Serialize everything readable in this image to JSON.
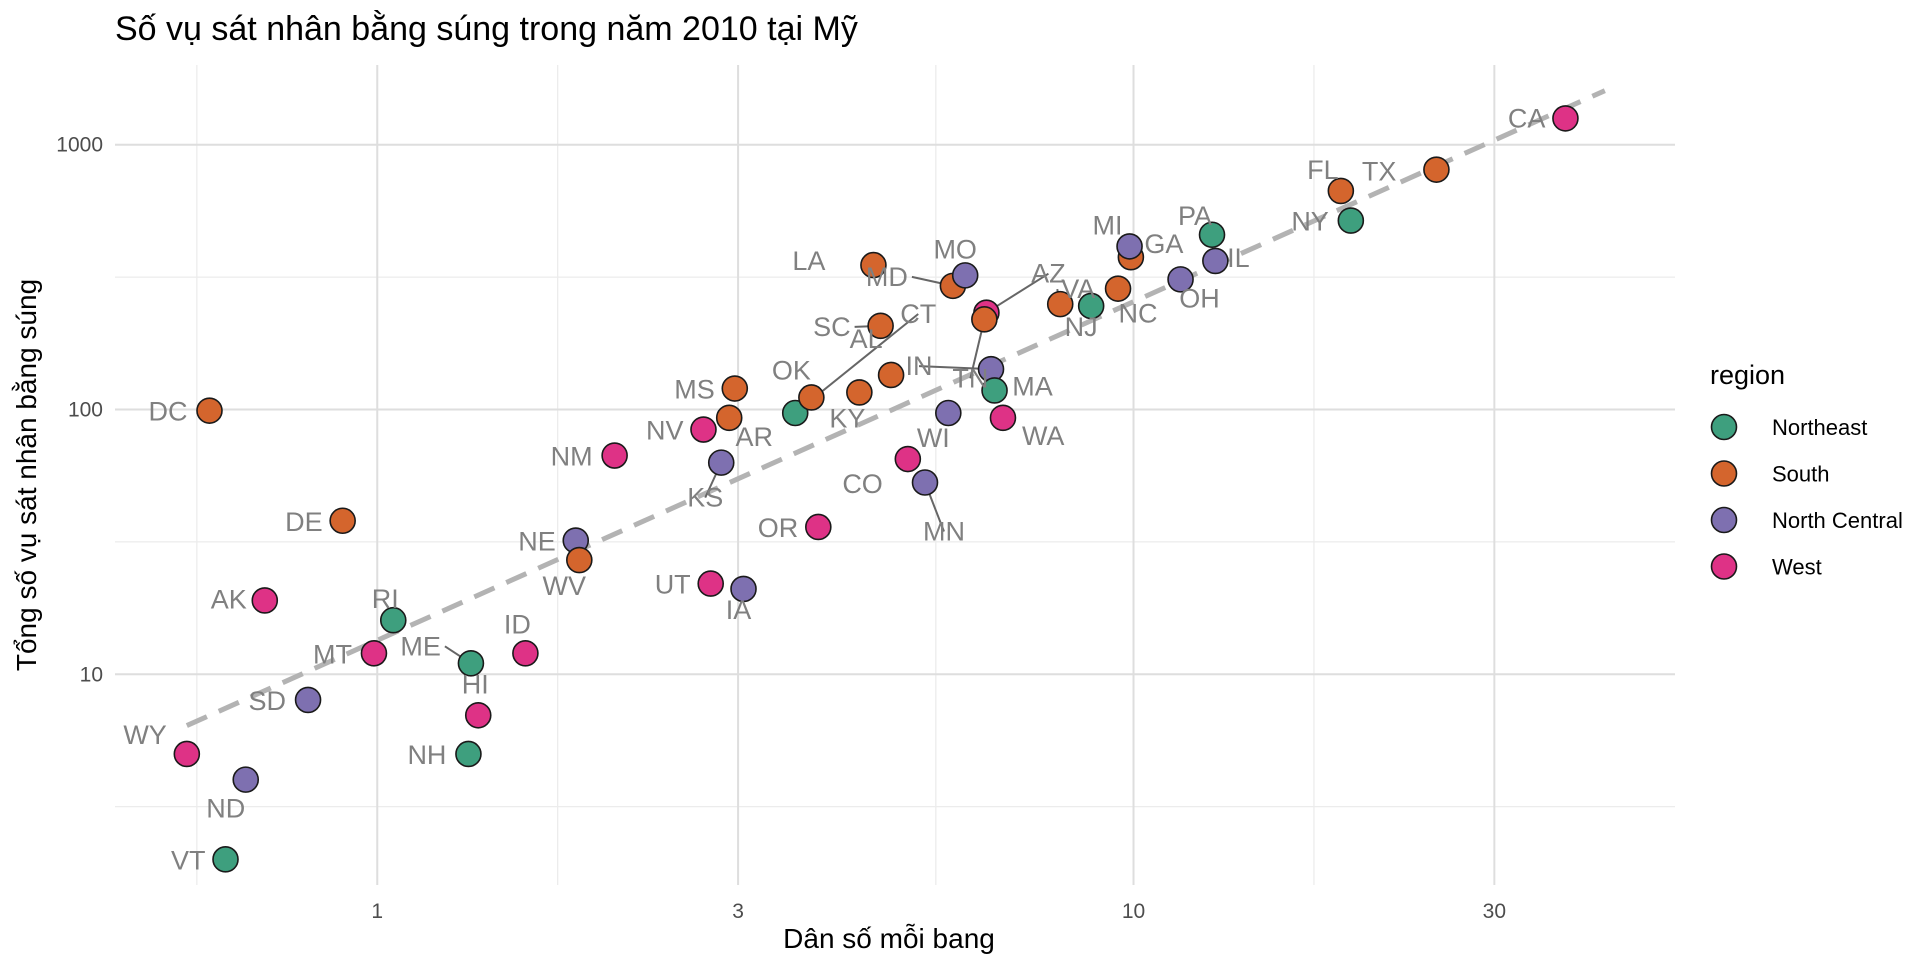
{
  "chart_data": {
    "type": "scatter",
    "title": "Số vụ sát nhân bằng súng trong năm 2010 tại Mỹ",
    "xlabel": "Dân số mỗi bang",
    "ylabel": "Tổng số vụ sát nhân bằng súng",
    "x_scale": "log10",
    "y_scale": "log10",
    "xlim": [
      0.45,
      52
    ],
    "ylim": [
      1.6,
      2000
    ],
    "x_ticks": [
      1,
      3,
      10,
      30
    ],
    "y_ticks": [
      10,
      100,
      1000
    ],
    "grid": true,
    "legend": {
      "title": "region",
      "position": "right",
      "entries": [
        {
          "name": "Northeast",
          "color": "#3E9F7E"
        },
        {
          "name": "South",
          "color": "#D4652D"
        },
        {
          "name": "North Central",
          "color": "#7E70B0"
        },
        {
          "name": "West",
          "color": "#DE3286"
        }
      ]
    },
    "trend_line": {
      "style": "dashed",
      "color": "#b3b3b3",
      "x_range": [
        0.56,
        42
      ],
      "y_range": [
        6.4,
        1600
      ]
    },
    "points": [
      {
        "abb": "AL",
        "x": 4.78,
        "y": 135,
        "region": "South"
      },
      {
        "abb": "AK",
        "x": 0.71,
        "y": 19,
        "region": "West"
      },
      {
        "abb": "AZ",
        "x": 6.39,
        "y": 232,
        "region": "West"
      },
      {
        "abb": "AR",
        "x": 2.92,
        "y": 93,
        "region": "South"
      },
      {
        "abb": "CA",
        "x": 37.25,
        "y": 1257,
        "region": "West"
      },
      {
        "abb": "CO",
        "x": 5.03,
        "y": 65,
        "region": "West"
      },
      {
        "abb": "CT",
        "x": 3.57,
        "y": 97,
        "region": "Northeast"
      },
      {
        "abb": "DE",
        "x": 0.9,
        "y": 38,
        "region": "South"
      },
      {
        "abb": "DC",
        "x": 0.6,
        "y": 99,
        "region": "South"
      },
      {
        "abb": "FL",
        "x": 18.8,
        "y": 669,
        "region": "South"
      },
      {
        "abb": "GA",
        "x": 9.92,
        "y": 376,
        "region": "South"
      },
      {
        "abb": "HI",
        "x": 1.36,
        "y": 7,
        "region": "West"
      },
      {
        "abb": "ID",
        "x": 1.57,
        "y": 12,
        "region": "West"
      },
      {
        "abb": "IL",
        "x": 12.83,
        "y": 364,
        "region": "North Central"
      },
      {
        "abb": "IN",
        "x": 6.48,
        "y": 142,
        "region": "North Central"
      },
      {
        "abb": "IA",
        "x": 3.05,
        "y": 21,
        "region": "North Central"
      },
      {
        "abb": "KS",
        "x": 2.85,
        "y": 63,
        "region": "North Central"
      },
      {
        "abb": "KY",
        "x": 4.34,
        "y": 116,
        "region": "South"
      },
      {
        "abb": "LA",
        "x": 4.53,
        "y": 351,
        "region": "South"
      },
      {
        "abb": "ME",
        "x": 1.33,
        "y": 11,
        "region": "Northeast"
      },
      {
        "abb": "MD",
        "x": 5.77,
        "y": 293,
        "region": "South"
      },
      {
        "abb": "MA",
        "x": 6.55,
        "y": 118,
        "region": "Northeast"
      },
      {
        "abb": "MI",
        "x": 9.88,
        "y": 413,
        "region": "North Central"
      },
      {
        "abb": "MN",
        "x": 5.3,
        "y": 53,
        "region": "North Central"
      },
      {
        "abb": "MS",
        "x": 2.97,
        "y": 120,
        "region": "South"
      },
      {
        "abb": "MO",
        "x": 5.99,
        "y": 321,
        "region": "North Central"
      },
      {
        "abb": "MT",
        "x": 0.99,
        "y": 12,
        "region": "West"
      },
      {
        "abb": "NE",
        "x": 1.83,
        "y": 32,
        "region": "North Central"
      },
      {
        "abb": "NV",
        "x": 2.7,
        "y": 84,
        "region": "West"
      },
      {
        "abb": "NH",
        "x": 1.32,
        "y": 5,
        "region": "Northeast"
      },
      {
        "abb": "NJ",
        "x": 8.79,
        "y": 246,
        "region": "Northeast"
      },
      {
        "abb": "NM",
        "x": 2.06,
        "y": 67,
        "region": "West"
      },
      {
        "abb": "NY",
        "x": 19.38,
        "y": 517,
        "region": "Northeast"
      },
      {
        "abb": "NC",
        "x": 9.54,
        "y": 286,
        "region": "South"
      },
      {
        "abb": "ND",
        "x": 0.67,
        "y": 4,
        "region": "North Central"
      },
      {
        "abb": "OH",
        "x": 11.54,
        "y": 310,
        "region": "North Central"
      },
      {
        "abb": "OK",
        "x": 3.75,
        "y": 111,
        "region": "South"
      },
      {
        "abb": "OR",
        "x": 3.83,
        "y": 36,
        "region": "West"
      },
      {
        "abb": "PA",
        "x": 12.7,
        "y": 457,
        "region": "Northeast"
      },
      {
        "abb": "RI",
        "x": 1.05,
        "y": 16,
        "region": "Northeast"
      },
      {
        "abb": "SC",
        "x": 4.63,
        "y": 207,
        "region": "South"
      },
      {
        "abb": "SD",
        "x": 0.81,
        "y": 8,
        "region": "North Central"
      },
      {
        "abb": "TN",
        "x": 6.35,
        "y": 219,
        "region": "South"
      },
      {
        "abb": "TX",
        "x": 25.15,
        "y": 805,
        "region": "South"
      },
      {
        "abb": "UT",
        "x": 2.76,
        "y": 22,
        "region": "West"
      },
      {
        "abb": "VT",
        "x": 0.63,
        "y": 2,
        "region": "Northeast"
      },
      {
        "abb": "VA",
        "x": 8.0,
        "y": 250,
        "region": "South"
      },
      {
        "abb": "WA",
        "x": 6.72,
        "y": 93,
        "region": "West"
      },
      {
        "abb": "WV",
        "x": 1.85,
        "y": 27,
        "region": "South"
      },
      {
        "abb": "WI",
        "x": 5.69,
        "y": 97,
        "region": "North Central"
      },
      {
        "abb": "WY",
        "x": 0.56,
        "y": 5,
        "region": "West"
      }
    ]
  }
}
